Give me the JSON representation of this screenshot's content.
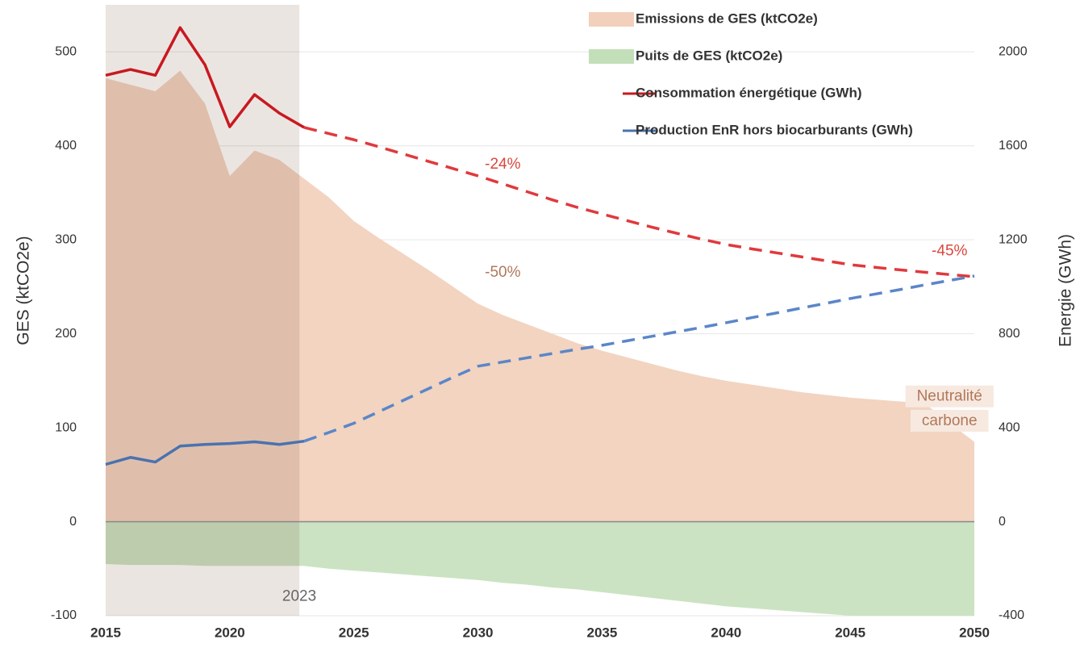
{
  "chart_data": {
    "type": "area_line",
    "ylabel": "GES (ktCO2e)",
    "y2label": "Energie (GWh)",
    "xlim": [
      2015,
      2050
    ],
    "xticks": [
      2015,
      2020,
      2025,
      2030,
      2035,
      2040,
      2045,
      2050
    ],
    "ylim": [
      -100,
      550
    ],
    "yticks": [
      -100,
      0,
      100,
      200,
      300,
      400,
      500
    ],
    "y2lim": [
      -400,
      2200
    ],
    "y2ticks": [
      -400,
      0,
      400,
      800,
      1200,
      1600,
      2000
    ],
    "grid": true,
    "legend": "top-right",
    "projection_start": 2023,
    "x": [
      2015,
      2016,
      2017,
      2018,
      2019,
      2020,
      2021,
      2022,
      2023,
      2024,
      2025,
      2026,
      2027,
      2028,
      2029,
      2030,
      2031,
      2032,
      2033,
      2034,
      2035,
      2036,
      2037,
      2038,
      2039,
      2040,
      2041,
      2042,
      2043,
      2044,
      2045,
      2046,
      2047,
      2048,
      2049,
      2050
    ],
    "series": [
      {
        "name": "Emissions de GES (ktCO2e)",
        "kind": "area",
        "color": "#f2d4c1",
        "values": [
          472,
          465,
          458,
          480,
          445,
          368,
          395,
          385,
          365,
          345,
          320,
          302,
          285,
          268,
          250,
          232,
          220,
          210,
          200,
          190,
          182,
          175,
          168,
          161,
          155,
          150,
          146,
          142,
          138,
          135,
          132,
          130,
          128,
          126,
          105,
          85
        ]
      },
      {
        "name": "Puits de GES (ktCO2e)",
        "kind": "area",
        "color": "#cbe3c2",
        "values": [
          -45,
          -46,
          -46,
          -46,
          -47,
          -47,
          -47,
          -47,
          -47,
          -50,
          -52,
          -54,
          -56,
          -58,
          -60,
          -62,
          -65,
          -67,
          -70,
          -72,
          -75,
          -78,
          -81,
          -84,
          -87,
          -90,
          -92,
          -94,
          -96,
          -98,
          -100,
          -100,
          -100,
          -100,
          -100,
          -100
        ]
      },
      {
        "name": "Consommation énergétique (GWh)",
        "kind": "line",
        "axis": "y2",
        "color": "#c8191f",
        "dash_color": "#e0393d",
        "values": [
          1900,
          1925,
          1900,
          2103,
          1945,
          1681,
          1818,
          1739,
          1678,
          1652,
          1626,
          1596,
          1565,
          1534,
          1503,
          1472,
          1438,
          1404,
          1370,
          1338,
          1310,
          1282,
          1254,
          1228,
          1203,
          1180,
          1162,
          1145,
          1128,
          1111,
          1094,
          1083,
          1072,
          1062,
          1052,
          1043
        ]
      },
      {
        "name": "Production EnR hors biocarburants (GWh)",
        "kind": "line",
        "axis": "y2",
        "color": "#4a72b0",
        "dash_color": "#5b86c8",
        "values": [
          244,
          274,
          254,
          322,
          329,
          333,
          340,
          329,
          343,
          380,
          419,
          468,
          517,
          566,
          615,
          662,
          680,
          698,
          716,
          734,
          751,
          770,
          789,
          808,
          827,
          847,
          868,
          888,
          909,
          929,
          950,
          969,
          988,
          1008,
          1027,
          1046
        ]
      }
    ],
    "annotations": [
      {
        "text": "-24%",
        "x": 2031,
        "y2": 1520,
        "color": "#d9473e"
      },
      {
        "text": "-45%",
        "x": 2049,
        "y2": 1150,
        "color": "#d9473e"
      },
      {
        "text": "-50%",
        "x": 2031,
        "y": 265,
        "color": "#b0785a",
        "box": "#ffffff"
      },
      {
        "text": "Neutralité",
        "x": 2049,
        "y": 133,
        "color": "#b0785a",
        "box": "#f7e9e0"
      },
      {
        "text": "carbone",
        "x": 2049,
        "y": 107,
        "color": "#b0785a",
        "box": "#f7e9e0"
      },
      {
        "text": "2023",
        "x": 2022.8,
        "y": -80,
        "color": "#666666"
      }
    ]
  }
}
